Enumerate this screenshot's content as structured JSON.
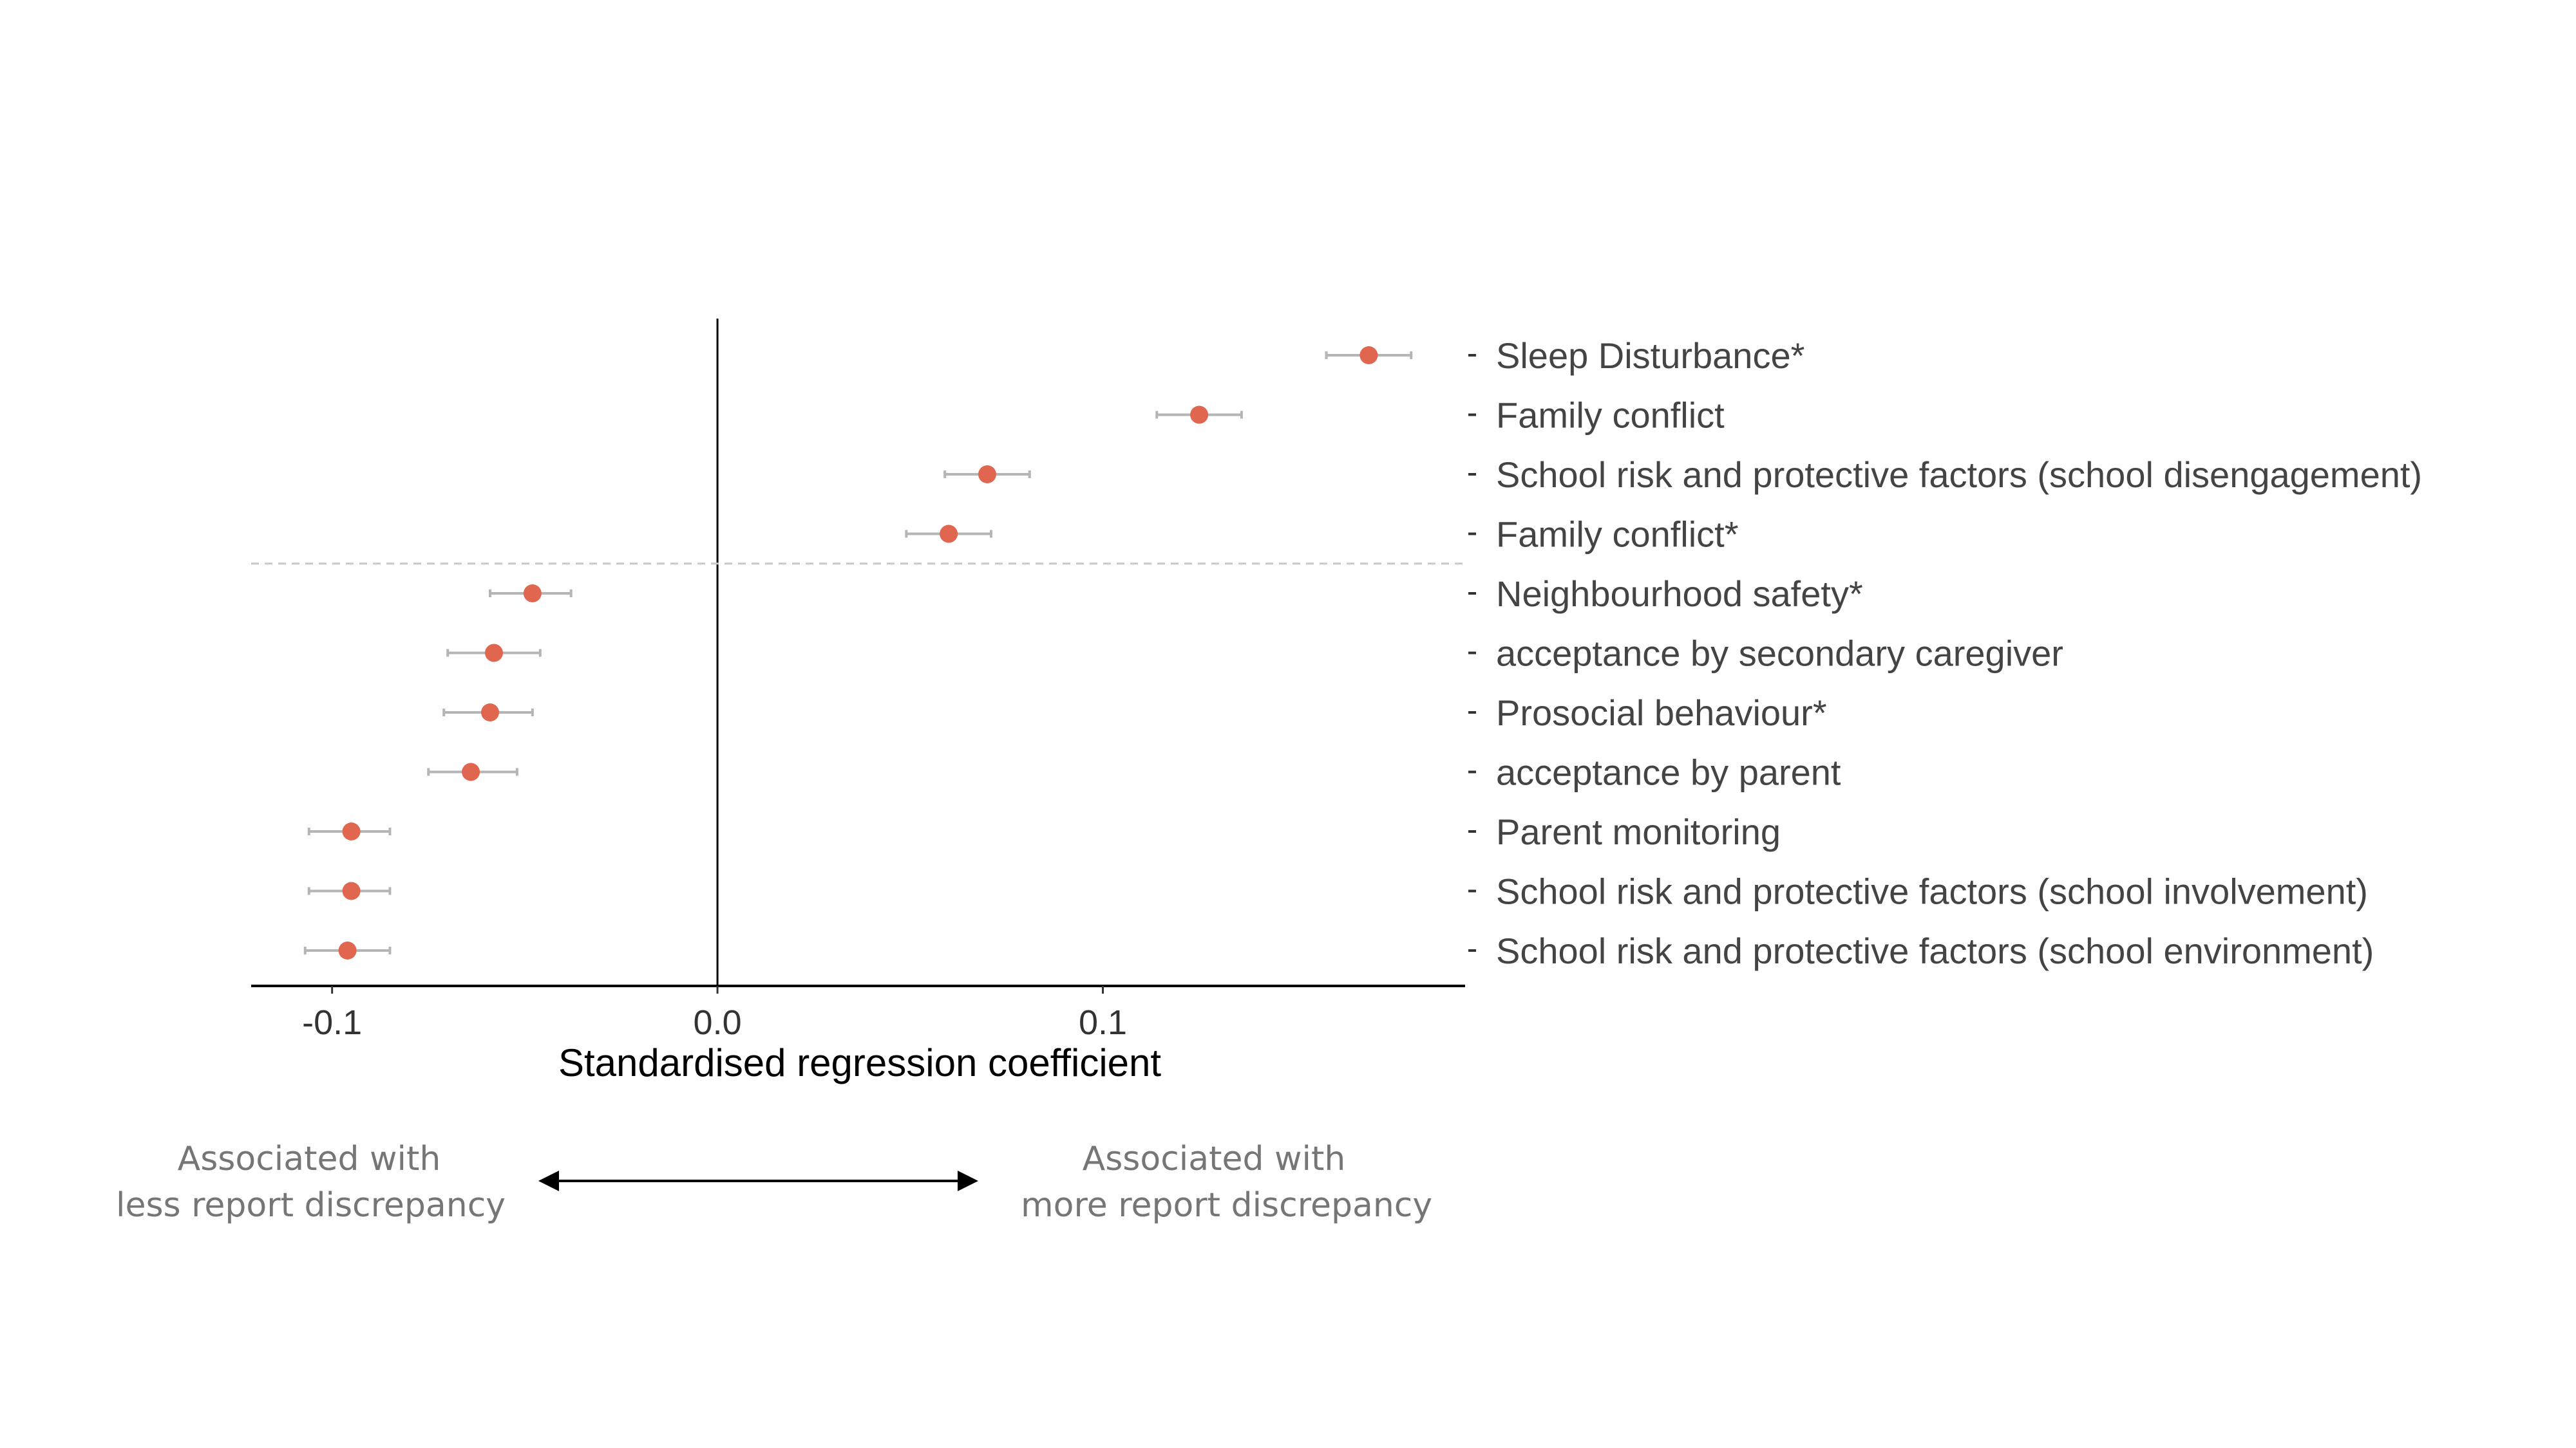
{
  "chart_data": {
    "type": "scatter",
    "subtype": "forest-plot",
    "xlabel": "Standardised regression coefficient",
    "xlim": [
      -0.121,
      0.194
    ],
    "xticks": [
      -0.1,
      0.0,
      0.1
    ],
    "xtick_labels": [
      "-0.1",
      "0.0",
      "0.1"
    ],
    "reference_line_x": 0.0,
    "separator_after_row": 4,
    "grid": false,
    "point_color": "#E06650",
    "errorbar_color": "#B5B5B5",
    "rows": [
      {
        "label": "Sleep Disturbance*",
        "value": 0.169,
        "lo": 0.158,
        "hi": 0.18
      },
      {
        "label": "Family conflict",
        "value": 0.125,
        "lo": 0.114,
        "hi": 0.136
      },
      {
        "label": "School risk and protective factors (school disengagement)",
        "value": 0.07,
        "lo": 0.059,
        "hi": 0.081
      },
      {
        "label": "Family conflict*",
        "value": 0.06,
        "lo": 0.049,
        "hi": 0.071
      },
      {
        "label": "Neighbourhood safety*",
        "value": -0.048,
        "lo": -0.059,
        "hi": -0.038
      },
      {
        "label": "acceptance by secondary caregiver",
        "value": -0.058,
        "lo": -0.07,
        "hi": -0.046
      },
      {
        "label": "Prosocial behaviour*",
        "value": -0.059,
        "lo": -0.071,
        "hi": -0.048
      },
      {
        "label": "acceptance by parent",
        "value": -0.064,
        "lo": -0.075,
        "hi": -0.052
      },
      {
        "label": "Parent monitoring",
        "value": -0.095,
        "lo": -0.106,
        "hi": -0.085
      },
      {
        "label": "School risk and protective factors (school involvement)",
        "value": -0.095,
        "lo": -0.106,
        "hi": -0.085
      },
      {
        "label": "School risk and protective factors (school environment)",
        "value": -0.096,
        "lo": -0.107,
        "hi": -0.085
      }
    ]
  },
  "annotations": {
    "left_note": [
      "Associated with",
      "less report discrepancy"
    ],
    "right_note": [
      "Associated with",
      "more report discrepancy"
    ]
  }
}
